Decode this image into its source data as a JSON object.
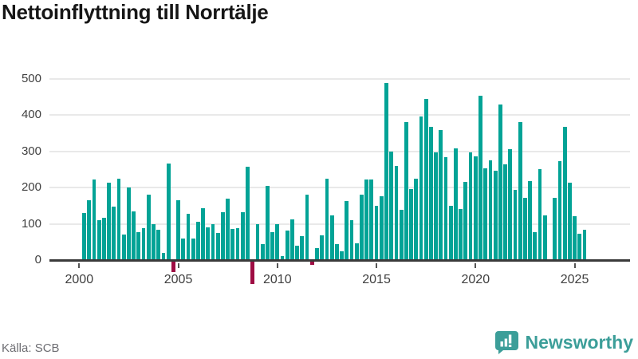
{
  "title": "Nettoinflyttning till Norrtälje",
  "source": "Källa: SCB",
  "branding": {
    "name": "Newsworthy",
    "icon": "bar-chart-speech-bubble-icon"
  },
  "colors": {
    "bar_positive": "#02a396",
    "bar_negative": "#9e0c43",
    "axis": "#3a3a3a",
    "gridline": "#e9e9e9",
    "tick_label": "#3f3f3f",
    "title": "#161616",
    "source_gray": "#6e6e73",
    "brand_teal": "#3c9e99"
  },
  "chart_data": {
    "type": "bar",
    "title": "Nettoinflyttning till Norrtälje",
    "ylabel": "",
    "xlabel": "",
    "frequency": "quarterly",
    "start_year": 2000,
    "start_quarter": 1,
    "end_label": "2025Q3",
    "x_tick_labels": [
      "2000",
      "2005",
      "2010",
      "2015",
      "2020",
      "2025"
    ],
    "y_ticks": [
      0,
      100,
      200,
      300,
      400,
      500
    ],
    "ylim": [
      -70,
      500
    ],
    "grid": true,
    "values": [
      null,
      130,
      165,
      222,
      110,
      117,
      214,
      148,
      224,
      70,
      200,
      134,
      77,
      88,
      181,
      100,
      83,
      20,
      267,
      -30,
      166,
      60,
      127,
      60,
      105,
      143,
      91,
      100,
      75,
      133,
      170,
      86,
      89,
      132,
      258,
      -62,
      98,
      44,
      205,
      76,
      100,
      10,
      82,
      112,
      39,
      66,
      181,
      -9,
      33,
      69,
      224,
      123,
      44,
      24,
      163,
      110,
      47,
      181,
      223,
      223,
      150,
      175,
      488,
      299,
      259,
      139,
      381,
      196,
      224,
      396,
      445,
      368,
      297,
      358,
      284,
      150,
      307,
      141,
      216,
      296,
      287,
      453,
      252,
      276,
      247,
      430,
      263,
      305,
      194,
      381,
      172,
      218,
      76,
      251,
      124,
      null,
      172,
      273,
      368,
      213,
      122,
      72,
      83
    ]
  }
}
